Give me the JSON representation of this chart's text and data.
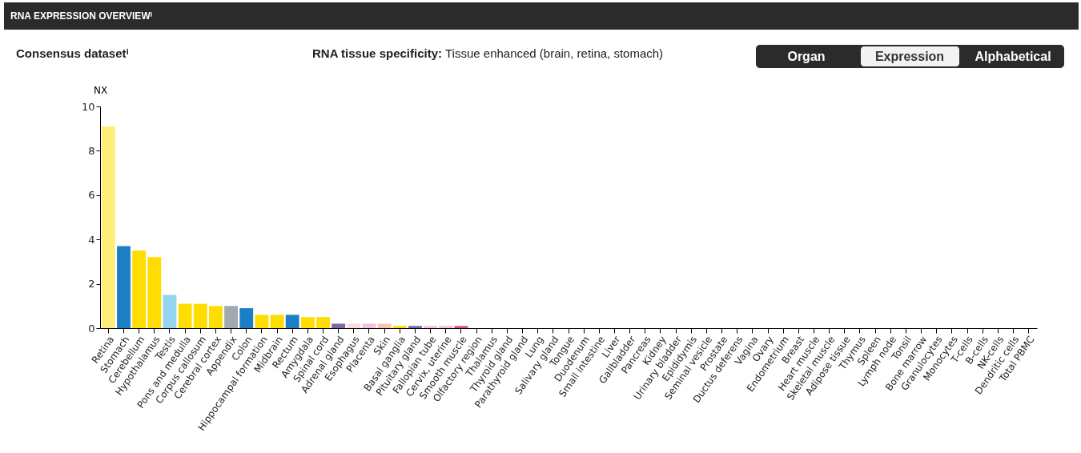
{
  "chart_data": {
    "type": "bar",
    "title": "RNA EXPRESSION OVERVIEWⁱ",
    "subtitle": "Consensus datasetⁱ",
    "annotations": [
      "RNA tissue specificity: Tissue enhanced (brain, retina, stomach)",
      "Organ",
      "Expression",
      "Alphabetical"
    ],
    "ylabel": "NX",
    "categories": [
      "Retina",
      "Stomach",
      "Cerebellum",
      "Hypothalamus",
      "Testis",
      "Pons and medulla",
      "Corpus callosum",
      "Cerebral cortex",
      "Appendix",
      "Colon",
      "Hippocampal formation",
      "Midbrain",
      "Rectum",
      "Amygdala",
      "Spinal cord",
      "Adrenal gland",
      "Esophagus",
      "Placenta",
      "Skin",
      "Basal ganglia",
      "Pituitary gland",
      "Fallopian tube",
      "Cervix, uterine",
      "Smooth muscle",
      "Olfactory region",
      "Thalamus",
      "Thyroid gland",
      "Parathyroid gland",
      "Lung",
      "Salivary gland",
      "Tongue",
      "Duodenum",
      "Small intestine",
      "Liver",
      "Gallbladder",
      "Pancreas",
      "Kidney",
      "Urinary bladder",
      "Epididymis",
      "Seminal vesicle",
      "Prostate",
      "Ductus deferens",
      "Vagina",
      "Ovary",
      "Endometrium",
      "Breast",
      "Heart muscle",
      "Skeletal muscle",
      "Adipose tissue",
      "Thymus",
      "Spleen",
      "Lymph node",
      "Tonsil",
      "Bone marrow",
      "Granulocytes",
      "Monocytes",
      "T-cells",
      "B-cells",
      "NK-cells",
      "Dendritic cells",
      "Total PBMC"
    ],
    "values": [
      9.1,
      3.7,
      3.5,
      3.2,
      1.5,
      1.1,
      1.1,
      1.0,
      1.0,
      0.9,
      0.6,
      0.6,
      0.6,
      0.5,
      0.5,
      0.2,
      0.2,
      0.2,
      0.2,
      0.1,
      0.1,
      0.1,
      0.1,
      0.1,
      0,
      0,
      0,
      0,
      0,
      0,
      0,
      0,
      0,
      0,
      0,
      0,
      0,
      0,
      0,
      0,
      0,
      0,
      0,
      0,
      0,
      0,
      0,
      0,
      0,
      0,
      0,
      0,
      0,
      0,
      0,
      0,
      0,
      0,
      0,
      0,
      0
    ],
    "colors": [
      "#ffee7a",
      "#1a7fc4",
      "#ffdd00",
      "#ffdd00",
      "#96d5f2",
      "#ffdd00",
      "#ffdd00",
      "#ffdd00",
      "#a3a9ad",
      "#1a7fc4",
      "#ffdd00",
      "#ffdd00",
      "#1a7fc4",
      "#ffdd00",
      "#ffdd00",
      "#7e6aa3",
      "#fcdbd9",
      "#f7bfd8",
      "#fcc4b0",
      "#ffdd00",
      "#7e6aa3",
      "#f7bfd8",
      "#f7bfd8",
      "#d9566b",
      "#ffdd00",
      "#ffdd00",
      "#7e6aa3",
      "#7e6aa3",
      "#a3a9ad",
      "#1a7fc4",
      "#1a7fc4",
      "#1a7fc4",
      "#1a7fc4",
      "#a8cf8e",
      "#a8cf8e",
      "#96c3e6",
      "#fcc4b0",
      "#fcc4b0",
      "#96d5f2",
      "#96d5f2",
      "#96d5f2",
      "#96d5f2",
      "#f7bfd8",
      "#f7bfd8",
      "#f7bfd8",
      "#f7bfd8",
      "#d9566b",
      "#d9566b",
      "#d9566b",
      "#e38b8b",
      "#e38b8b",
      "#e38b8b",
      "#e38b8b",
      "#e38b8b",
      "#f08c8c",
      "#f08c8c",
      "#f08c8c",
      "#f08c8c",
      "#f08c8c",
      "#f08c8c",
      "#f08c8c"
    ],
    "ylim": [
      0,
      10
    ],
    "yticks": [
      0,
      2,
      4,
      6,
      8,
      10
    ],
    "grid": false
  }
}
